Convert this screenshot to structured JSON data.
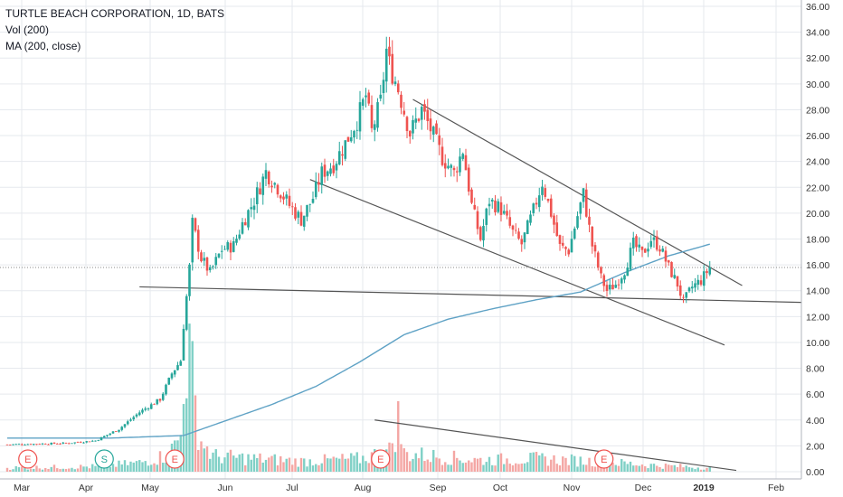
{
  "legend": {
    "title": "TURTLE BEACH CORPORATION, 1D, BATS",
    "vol": "Vol (200)",
    "ma": "MA (200, close)"
  },
  "chart_data": {
    "type": "candlestick",
    "title": "TURTLE BEACH CORPORATION, 1D, BATS",
    "y_ticks": [
      "36.00",
      "34.00",
      "32.00",
      "30.00",
      "28.00",
      "26.00",
      "24.00",
      "22.00",
      "20.00",
      "18.00",
      "16.00",
      "14.00",
      "12.00",
      "10.00",
      "8.00",
      "6.00",
      "4.00",
      "2.00",
      "0.00"
    ],
    "ylim": [
      0,
      36
    ],
    "x_ticks": [
      {
        "label": "Mar",
        "bold": false
      },
      {
        "label": "Apr",
        "bold": false
      },
      {
        "label": "May",
        "bold": false
      },
      {
        "label": "Jun",
        "bold": false
      },
      {
        "label": "Jul",
        "bold": false
      },
      {
        "label": "Aug",
        "bold": false
      },
      {
        "label": "Sep",
        "bold": false
      },
      {
        "label": "Oct",
        "bold": false
      },
      {
        "label": "Nov",
        "bold": false
      },
      {
        "label": "Dec",
        "bold": false
      },
      {
        "label": "2019",
        "bold": true
      },
      {
        "label": "Feb",
        "bold": false
      }
    ],
    "current_price": 15.8,
    "colors": {
      "up": "#26a69a",
      "down": "#ef5350",
      "vol_up": "#7fd0c6",
      "vol_down": "#f4a6a3",
      "ma": "#5fa2c5",
      "trendline": "#555555",
      "grid": "#e6e9ee"
    },
    "price_anchors": [
      {
        "day": 0,
        "close": 2.1
      },
      {
        "day": 20,
        "close": 2.2
      },
      {
        "day": 30,
        "close": 2.4
      },
      {
        "day": 38,
        "close": 3.3
      },
      {
        "day": 45,
        "close": 4.6
      },
      {
        "day": 52,
        "close": 5.6
      },
      {
        "day": 56,
        "close": 7.6
      },
      {
        "day": 59,
        "close": 8.6
      },
      {
        "day": 60,
        "close": 11.3
      },
      {
        "day": 62,
        "close": 15.8
      },
      {
        "day": 63,
        "close": 19.2
      },
      {
        "day": 66,
        "close": 16.5
      },
      {
        "day": 69,
        "close": 15.4
      },
      {
        "day": 73,
        "close": 17.2
      },
      {
        "day": 77,
        "close": 17.5
      },
      {
        "day": 80,
        "close": 19.2
      },
      {
        "day": 84,
        "close": 21.0
      },
      {
        "day": 88,
        "close": 23.2
      },
      {
        "day": 92,
        "close": 22.0
      },
      {
        "day": 96,
        "close": 20.6
      },
      {
        "day": 100,
        "close": 19.5
      },
      {
        "day": 104,
        "close": 21.2
      },
      {
        "day": 107,
        "close": 23.1
      },
      {
        "day": 111,
        "close": 23.8
      },
      {
        "day": 115,
        "close": 25.4
      },
      {
        "day": 119,
        "close": 27.2
      },
      {
        "day": 122,
        "close": 29.1
      },
      {
        "day": 124,
        "close": 26.3
      },
      {
        "day": 127,
        "close": 28.6
      },
      {
        "day": 129,
        "close": 32.6
      },
      {
        "day": 130,
        "close": 31.5
      },
      {
        "day": 133,
        "close": 29.6
      },
      {
        "day": 137,
        "close": 26.2
      },
      {
        "day": 141,
        "close": 28.0
      },
      {
        "day": 144,
        "close": 26.5
      },
      {
        "day": 148,
        "close": 24.3
      },
      {
        "day": 152,
        "close": 23.1
      },
      {
        "day": 155,
        "close": 24.9
      },
      {
        "day": 158,
        "close": 20.6
      },
      {
        "day": 161,
        "close": 18.0
      },
      {
        "day": 164,
        "close": 21.0
      },
      {
        "day": 168,
        "close": 20.3
      },
      {
        "day": 172,
        "close": 18.5
      },
      {
        "day": 175,
        "close": 17.6
      },
      {
        "day": 179,
        "close": 20.2
      },
      {
        "day": 182,
        "close": 22.4
      },
      {
        "day": 185,
        "close": 20.0
      },
      {
        "day": 188,
        "close": 17.4
      },
      {
        "day": 191,
        "close": 17.1
      },
      {
        "day": 194,
        "close": 19.8
      },
      {
        "day": 196,
        "close": 21.5
      },
      {
        "day": 199,
        "close": 17.5
      },
      {
        "day": 202,
        "close": 15.0
      },
      {
        "day": 204,
        "close": 14.0
      },
      {
        "day": 207,
        "close": 14.5
      },
      {
        "day": 210,
        "close": 15.6
      },
      {
        "day": 213,
        "close": 17.6
      },
      {
        "day": 216,
        "close": 16.8
      },
      {
        "day": 219,
        "close": 18.0
      },
      {
        "day": 222,
        "close": 17.4
      },
      {
        "day": 225,
        "close": 15.8
      },
      {
        "day": 228,
        "close": 14.5
      },
      {
        "day": 230,
        "close": 13.1
      },
      {
        "day": 233,
        "close": 14.3
      },
      {
        "day": 236,
        "close": 14.8
      },
      {
        "day": 239,
        "close": 15.8
      }
    ],
    "volume_anchors": [
      {
        "day": 0,
        "vol": 0.3
      },
      {
        "day": 30,
        "vol": 0.4
      },
      {
        "day": 45,
        "vol": 0.7
      },
      {
        "day": 55,
        "vol": 1.3
      },
      {
        "day": 59,
        "vol": 2.8
      },
      {
        "day": 60,
        "vol": 8.8
      },
      {
        "day": 62,
        "vol": 8.7
      },
      {
        "day": 64,
        "vol": 5.0
      },
      {
        "day": 66,
        "vol": 2.4
      },
      {
        "day": 70,
        "vol": 1.2
      },
      {
        "day": 85,
        "vol": 1.0
      },
      {
        "day": 100,
        "vol": 0.8
      },
      {
        "day": 120,
        "vol": 1.0
      },
      {
        "day": 130,
        "vol": 1.6
      },
      {
        "day": 133,
        "vol": 4.0
      },
      {
        "day": 135,
        "vol": 1.4
      },
      {
        "day": 160,
        "vol": 0.9
      },
      {
        "day": 180,
        "vol": 1.0
      },
      {
        "day": 200,
        "vol": 0.8
      },
      {
        "day": 220,
        "vol": 0.5
      },
      {
        "day": 239,
        "vol": 0.3
      }
    ],
    "ma_anchors": [
      {
        "day": 0,
        "value": 2.6
      },
      {
        "day": 35,
        "value": 2.6
      },
      {
        "day": 60,
        "value": 2.8
      },
      {
        "day": 75,
        "value": 4.0
      },
      {
        "day": 90,
        "value": 5.2
      },
      {
        "day": 105,
        "value": 6.6
      },
      {
        "day": 120,
        "value": 8.5
      },
      {
        "day": 135,
        "value": 10.6
      },
      {
        "day": 150,
        "value": 11.8
      },
      {
        "day": 165,
        "value": 12.6
      },
      {
        "day": 180,
        "value": 13.3
      },
      {
        "day": 195,
        "value": 13.9
      },
      {
        "day": 210,
        "value": 15.4
      },
      {
        "day": 225,
        "value": 16.7
      },
      {
        "day": 239,
        "value": 17.6
      }
    ],
    "earnings_markers": [
      {
        "day": 7,
        "label": "E",
        "type": "earnings"
      },
      {
        "day": 33,
        "label": "S",
        "type": "split"
      },
      {
        "day": 57,
        "label": "E",
        "type": "earnings"
      },
      {
        "day": 127,
        "label": "E",
        "type": "earnings"
      },
      {
        "day": 203,
        "label": "E",
        "type": "earnings"
      }
    ]
  }
}
